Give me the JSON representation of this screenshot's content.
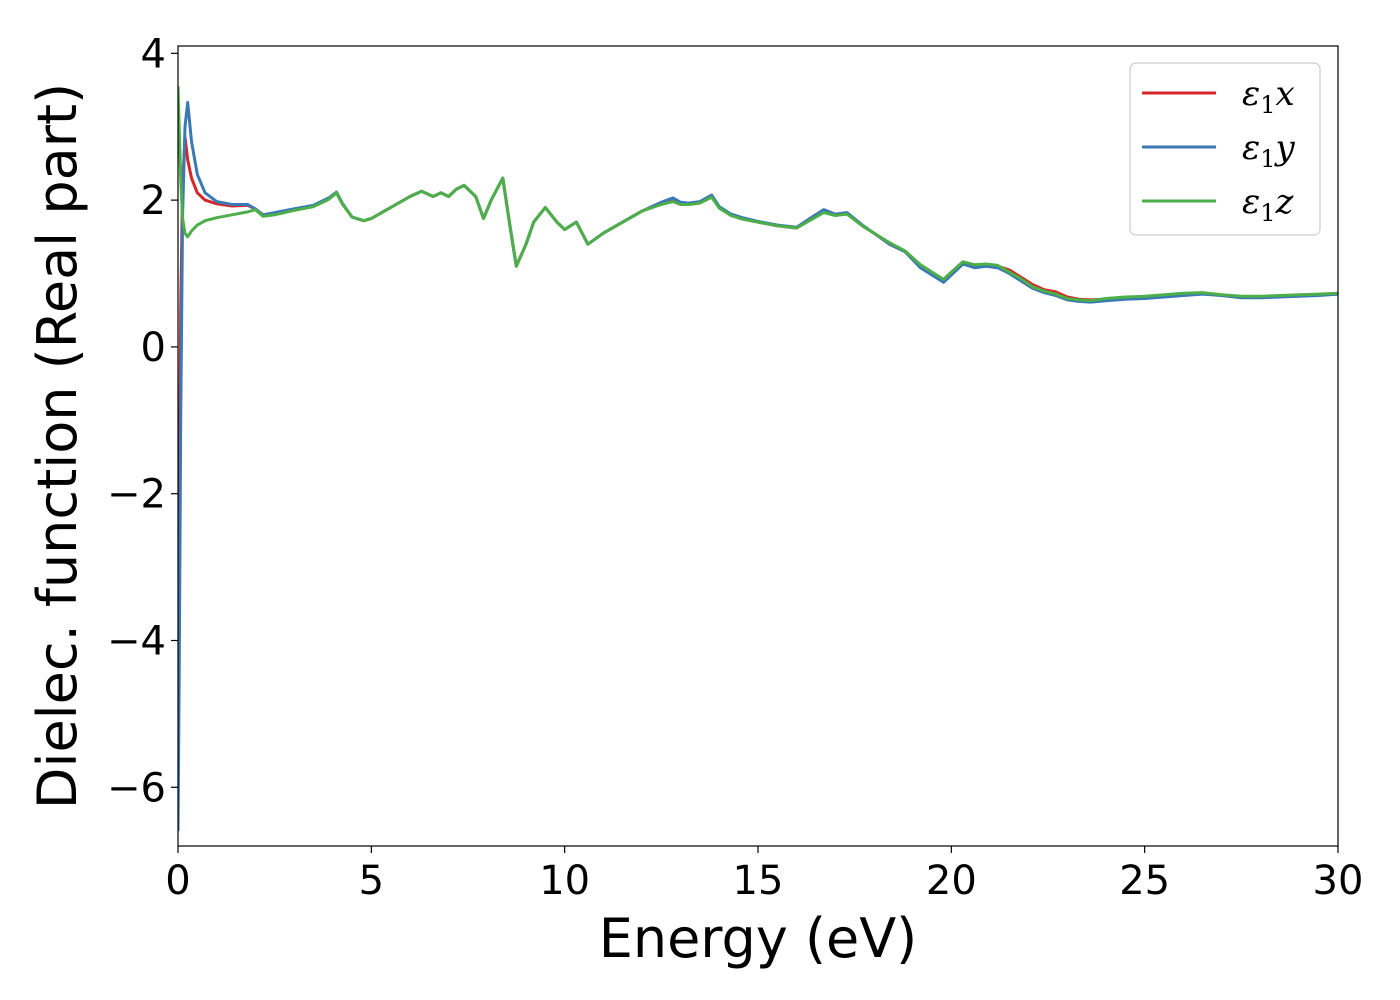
{
  "chart_data": {
    "type": "line",
    "xlabel": "Energy (eV)",
    "ylabel": "Dielec. function (Real part)",
    "xlim": [
      0,
      30
    ],
    "ylim": [
      -6.8,
      4.1
    ],
    "xticks": [
      0,
      5,
      10,
      15,
      20,
      25,
      30
    ],
    "yticks": [
      -6,
      -4,
      -2,
      0,
      2,
      4
    ],
    "xtick_labels": [
      "0",
      "5",
      "10",
      "15",
      "20",
      "25",
      "30"
    ],
    "ytick_labels": [
      "−6",
      "−4",
      "−2",
      "0",
      "2",
      "4"
    ],
    "grid": false,
    "legend_position": "top-right",
    "series": [
      {
        "name": "ε₁x",
        "legend_main": "ε",
        "legend_sub": "1",
        "legend_var": "x",
        "color": "#d62728",
        "x": [
          0.0,
          0.03,
          0.07,
          0.12,
          0.18,
          0.25,
          0.35,
          0.5,
          0.7,
          1.0,
          1.4,
          1.8,
          2.0,
          2.2,
          2.5,
          3.0,
          3.5,
          3.9,
          4.1,
          4.25,
          4.5,
          4.8,
          5.0,
          5.5,
          6.0,
          6.3,
          6.6,
          6.8,
          7.0,
          7.2,
          7.4,
          7.7,
          7.9,
          8.1,
          8.4,
          8.6,
          8.75,
          9.0,
          9.2,
          9.5,
          9.8,
          10.0,
          10.3,
          10.6,
          11.0,
          11.5,
          12.0,
          12.5,
          12.8,
          13.0,
          13.2,
          13.5,
          13.8,
          14.0,
          14.3,
          14.6,
          15.0,
          15.5,
          16.0,
          16.4,
          16.7,
          17.0,
          17.3,
          17.7,
          18.0,
          18.4,
          18.8,
          19.2,
          19.5,
          19.8,
          20.0,
          20.3,
          20.6,
          20.9,
          21.2,
          21.5,
          21.8,
          22.1,
          22.4,
          22.7,
          23.0,
          23.3,
          23.6,
          24.0,
          24.5,
          25.0,
          25.5,
          26.0,
          26.5,
          27.0,
          27.5,
          28.0,
          28.5,
          29.0,
          29.5,
          30.0
        ],
        "y": [
          -4.0,
          -2.5,
          0.5,
          2.2,
          2.85,
          2.55,
          2.3,
          2.1,
          2.0,
          1.95,
          1.92,
          1.93,
          1.88,
          1.8,
          1.82,
          1.87,
          1.92,
          2.02,
          2.1,
          1.95,
          1.77,
          1.72,
          1.75,
          1.9,
          2.05,
          2.12,
          2.05,
          2.1,
          2.05,
          2.15,
          2.2,
          2.05,
          1.75,
          2.0,
          2.3,
          1.6,
          1.1,
          1.4,
          1.7,
          1.9,
          1.7,
          1.6,
          1.7,
          1.4,
          1.55,
          1.7,
          1.85,
          1.95,
          2.0,
          1.95,
          1.95,
          1.97,
          2.05,
          1.9,
          1.8,
          1.75,
          1.7,
          1.65,
          1.62,
          1.75,
          1.85,
          1.8,
          1.82,
          1.65,
          1.55,
          1.4,
          1.3,
          1.1,
          1.0,
          0.9,
          1.0,
          1.15,
          1.1,
          1.12,
          1.1,
          1.05,
          0.95,
          0.85,
          0.78,
          0.75,
          0.68,
          0.65,
          0.64,
          0.65,
          0.67,
          0.68,
          0.7,
          0.72,
          0.73,
          0.7,
          0.68,
          0.68,
          0.69,
          0.7,
          0.71,
          0.72
        ]
      },
      {
        "name": "ε₁y",
        "legend_main": "ε",
        "legend_sub": "1",
        "legend_var": "y",
        "color": "#3a78b6",
        "x": [
          0.0,
          0.03,
          0.07,
          0.12,
          0.18,
          0.25,
          0.35,
          0.5,
          0.7,
          1.0,
          1.4,
          1.8,
          2.0,
          2.2,
          2.5,
          3.0,
          3.5,
          3.9,
          4.1,
          4.25,
          4.5,
          4.8,
          5.0,
          5.5,
          6.0,
          6.3,
          6.6,
          6.8,
          7.0,
          7.2,
          7.4,
          7.7,
          7.9,
          8.1,
          8.4,
          8.6,
          8.75,
          9.0,
          9.2,
          9.5,
          9.8,
          10.0,
          10.3,
          10.6,
          11.0,
          11.5,
          12.0,
          12.5,
          12.8,
          13.0,
          13.2,
          13.5,
          13.8,
          14.0,
          14.3,
          14.6,
          15.0,
          15.5,
          16.0,
          16.4,
          16.7,
          17.0,
          17.3,
          17.7,
          18.0,
          18.4,
          18.8,
          19.2,
          19.5,
          19.8,
          20.0,
          20.3,
          20.6,
          20.9,
          21.2,
          21.5,
          21.8,
          22.1,
          22.4,
          22.7,
          23.0,
          23.3,
          23.6,
          24.0,
          24.5,
          25.0,
          25.5,
          26.0,
          26.5,
          27.0,
          27.5,
          28.0,
          28.5,
          29.0,
          29.5,
          30.0
        ],
        "y": [
          -6.6,
          -4.5,
          -1.0,
          1.8,
          3.0,
          3.33,
          2.8,
          2.35,
          2.1,
          1.98,
          1.94,
          1.94,
          1.88,
          1.8,
          1.83,
          1.88,
          1.93,
          2.03,
          2.11,
          1.96,
          1.77,
          1.72,
          1.75,
          1.9,
          2.05,
          2.12,
          2.05,
          2.1,
          2.05,
          2.15,
          2.2,
          2.05,
          1.75,
          2.0,
          2.3,
          1.6,
          1.1,
          1.4,
          1.7,
          1.9,
          1.7,
          1.6,
          1.7,
          1.4,
          1.55,
          1.7,
          1.85,
          1.97,
          2.03,
          1.97,
          1.96,
          1.98,
          2.07,
          1.91,
          1.81,
          1.76,
          1.71,
          1.66,
          1.63,
          1.77,
          1.87,
          1.81,
          1.83,
          1.66,
          1.55,
          1.4,
          1.3,
          1.08,
          0.98,
          0.88,
          0.98,
          1.13,
          1.08,
          1.1,
          1.08,
          1.0,
          0.9,
          0.8,
          0.74,
          0.7,
          0.64,
          0.62,
          0.61,
          0.63,
          0.65,
          0.66,
          0.68,
          0.7,
          0.72,
          0.7,
          0.67,
          0.67,
          0.68,
          0.69,
          0.7,
          0.72
        ]
      },
      {
        "name": "ε₁z",
        "legend_main": "ε",
        "legend_sub": "1",
        "legend_var": "z",
        "color": "#4daf4a",
        "x": [
          0.0,
          0.03,
          0.07,
          0.12,
          0.18,
          0.25,
          0.35,
          0.5,
          0.7,
          1.0,
          1.4,
          1.8,
          2.0,
          2.2,
          2.5,
          3.0,
          3.5,
          3.9,
          4.1,
          4.25,
          4.5,
          4.8,
          5.0,
          5.5,
          6.0,
          6.3,
          6.6,
          6.8,
          7.0,
          7.2,
          7.4,
          7.7,
          7.9,
          8.1,
          8.4,
          8.6,
          8.75,
          9.0,
          9.2,
          9.5,
          9.8,
          10.0,
          10.3,
          10.6,
          11.0,
          11.5,
          12.0,
          12.5,
          12.8,
          13.0,
          13.2,
          13.5,
          13.8,
          14.0,
          14.3,
          14.6,
          15.0,
          15.5,
          16.0,
          16.4,
          16.7,
          17.0,
          17.3,
          17.7,
          18.0,
          18.4,
          18.8,
          19.2,
          19.5,
          19.8,
          20.0,
          20.3,
          20.6,
          20.9,
          21.2,
          21.5,
          21.8,
          22.1,
          22.4,
          22.7,
          23.0,
          23.3,
          23.6,
          24.0,
          24.5,
          25.0,
          25.5,
          26.0,
          26.5,
          27.0,
          27.5,
          28.0,
          28.5,
          29.0,
          29.5,
          30.0
        ],
        "y": [
          3.55,
          3.0,
          2.3,
          1.75,
          1.55,
          1.5,
          1.58,
          1.66,
          1.72,
          1.76,
          1.8,
          1.84,
          1.87,
          1.78,
          1.8,
          1.86,
          1.91,
          2.01,
          2.1,
          1.95,
          1.77,
          1.72,
          1.75,
          1.9,
          2.05,
          2.12,
          2.05,
          2.1,
          2.05,
          2.15,
          2.2,
          2.05,
          1.75,
          2.0,
          2.3,
          1.6,
          1.1,
          1.4,
          1.7,
          1.9,
          1.7,
          1.6,
          1.7,
          1.4,
          1.55,
          1.7,
          1.85,
          1.94,
          1.98,
          1.94,
          1.94,
          1.96,
          2.04,
          1.89,
          1.79,
          1.74,
          1.7,
          1.65,
          1.62,
          1.74,
          1.83,
          1.79,
          1.81,
          1.65,
          1.55,
          1.42,
          1.31,
          1.12,
          1.02,
          0.92,
          1.02,
          1.16,
          1.12,
          1.13,
          1.11,
          1.02,
          0.93,
          0.82,
          0.76,
          0.72,
          0.66,
          0.64,
          0.63,
          0.66,
          0.68,
          0.69,
          0.71,
          0.73,
          0.74,
          0.71,
          0.69,
          0.69,
          0.7,
          0.71,
          0.72,
          0.73
        ]
      }
    ]
  }
}
